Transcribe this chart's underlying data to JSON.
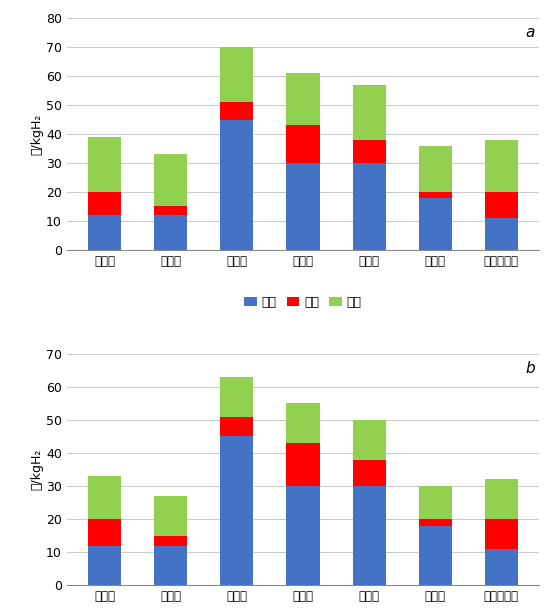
{
  "categories": [
    "模式一",
    "模式二",
    "模式三",
    "模式四",
    "模式五",
    "模式六",
    "副产氢模式"
  ],
  "chart_a": {
    "label": "a",
    "zhi_qing": [
      12,
      12,
      45,
      30,
      30,
      18,
      11
    ],
    "yun_shu": [
      8,
      3,
      6,
      13,
      8,
      2,
      9
    ],
    "jia_zhu": [
      19,
      18,
      19,
      18,
      19,
      16,
      18
    ],
    "ylim": [
      0,
      80
    ],
    "yticks": [
      0,
      10,
      20,
      30,
      40,
      50,
      60,
      70,
      80
    ]
  },
  "chart_b": {
    "label": "b",
    "zhi_qing": [
      12,
      12,
      45,
      30,
      30,
      18,
      11
    ],
    "yun_shu": [
      8,
      3,
      6,
      13,
      8,
      2,
      9
    ],
    "jia_zhu": [
      13,
      12,
      12,
      12,
      12,
      10,
      12
    ],
    "ylim": [
      0,
      70
    ],
    "yticks": [
      0,
      10,
      20,
      30,
      40,
      50,
      60,
      70
    ]
  },
  "colors": {
    "zhi_qing": "#4472C4",
    "yun_shu": "#FF0000",
    "jia_zhu": "#92D050"
  },
  "legend_labels": [
    "制氢",
    "运输",
    "加注"
  ],
  "ylabel": "元/kgH₂",
  "bg_color": "#FFFFFF",
  "grid_color": "#C0C0C0"
}
